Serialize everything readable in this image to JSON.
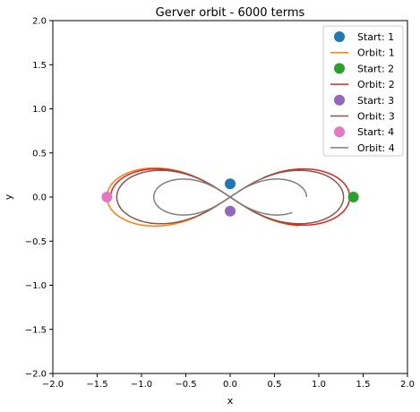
{
  "chart_data": {
    "type": "line",
    "title": "Gerver orbit - 6000 terms",
    "xlabel": "x",
    "ylabel": "y",
    "xlim": [
      -2.0,
      2.0
    ],
    "ylim": [
      -2.0,
      2.0
    ],
    "xticks": [
      -2.0,
      -1.5,
      -1.0,
      -0.5,
      0.0,
      0.5,
      1.0,
      1.5,
      2.0
    ],
    "yticks": [
      -2.0,
      -1.5,
      -1.0,
      -0.5,
      0.0,
      0.5,
      1.0,
      1.5,
      2.0
    ],
    "xtick_labels": [
      "−2.0",
      "−1.5",
      "−1.0",
      "−0.5",
      "0.0",
      "0.5",
      "1.0",
      "1.5",
      "2.0"
    ],
    "ytick_labels": [
      "−2.0",
      "−1.5",
      "−1.0",
      "−0.5",
      "0.0",
      "0.5",
      "1.0",
      "1.5",
      "2.0"
    ],
    "grid": false,
    "legend_position": "upper right",
    "legend": [
      {
        "label": "Start: 1",
        "kind": "marker",
        "color": "#1f77b4"
      },
      {
        "label": "Orbit: 1",
        "kind": "line",
        "color": "#ff7f0e"
      },
      {
        "label": "Start: 2",
        "kind": "marker",
        "color": "#2ca02c"
      },
      {
        "label": "Orbit: 2",
        "kind": "line",
        "color": "#d62728"
      },
      {
        "label": "Start: 3",
        "kind": "marker",
        "color": "#9467bd"
      },
      {
        "label": "Orbit: 3",
        "kind": "line",
        "color": "#8c564b"
      },
      {
        "label": "Start: 4",
        "kind": "marker",
        "color": "#e377c2"
      },
      {
        "label": "Orbit: 4",
        "kind": "line",
        "color": "#7f7f7f"
      }
    ],
    "start_points": [
      {
        "name": "Start: 1",
        "x": 0.0,
        "y": 0.15,
        "color": "#1f77b4"
      },
      {
        "name": "Start: 2",
        "x": 1.39,
        "y": 0.0,
        "color": "#2ca02c"
      },
      {
        "name": "Start: 3",
        "x": 0.0,
        "y": -0.16,
        "color": "#9467bd"
      },
      {
        "name": "Start: 4",
        "x": -1.39,
        "y": 0.0,
        "color": "#e377c2"
      }
    ],
    "orbits": [
      {
        "name": "Orbit: 1",
        "color": "#ff7f0e",
        "t_start": 1.571,
        "t_end": 5.6,
        "amp": 1.0
      },
      {
        "name": "Orbit: 2",
        "color": "#d62728",
        "t_start": 3.142,
        "t_end": 7.35,
        "amp": 0.97
      },
      {
        "name": "Orbit: 3",
        "color": "#8c564b",
        "t_start": 4.712,
        "t_end": 10.7,
        "amp": 0.92
      },
      {
        "name": "Orbit: 4",
        "color": "#7f7f7f",
        "t_start": 0.0,
        "t_end": 5.9,
        "amp": 0.62
      }
    ]
  }
}
